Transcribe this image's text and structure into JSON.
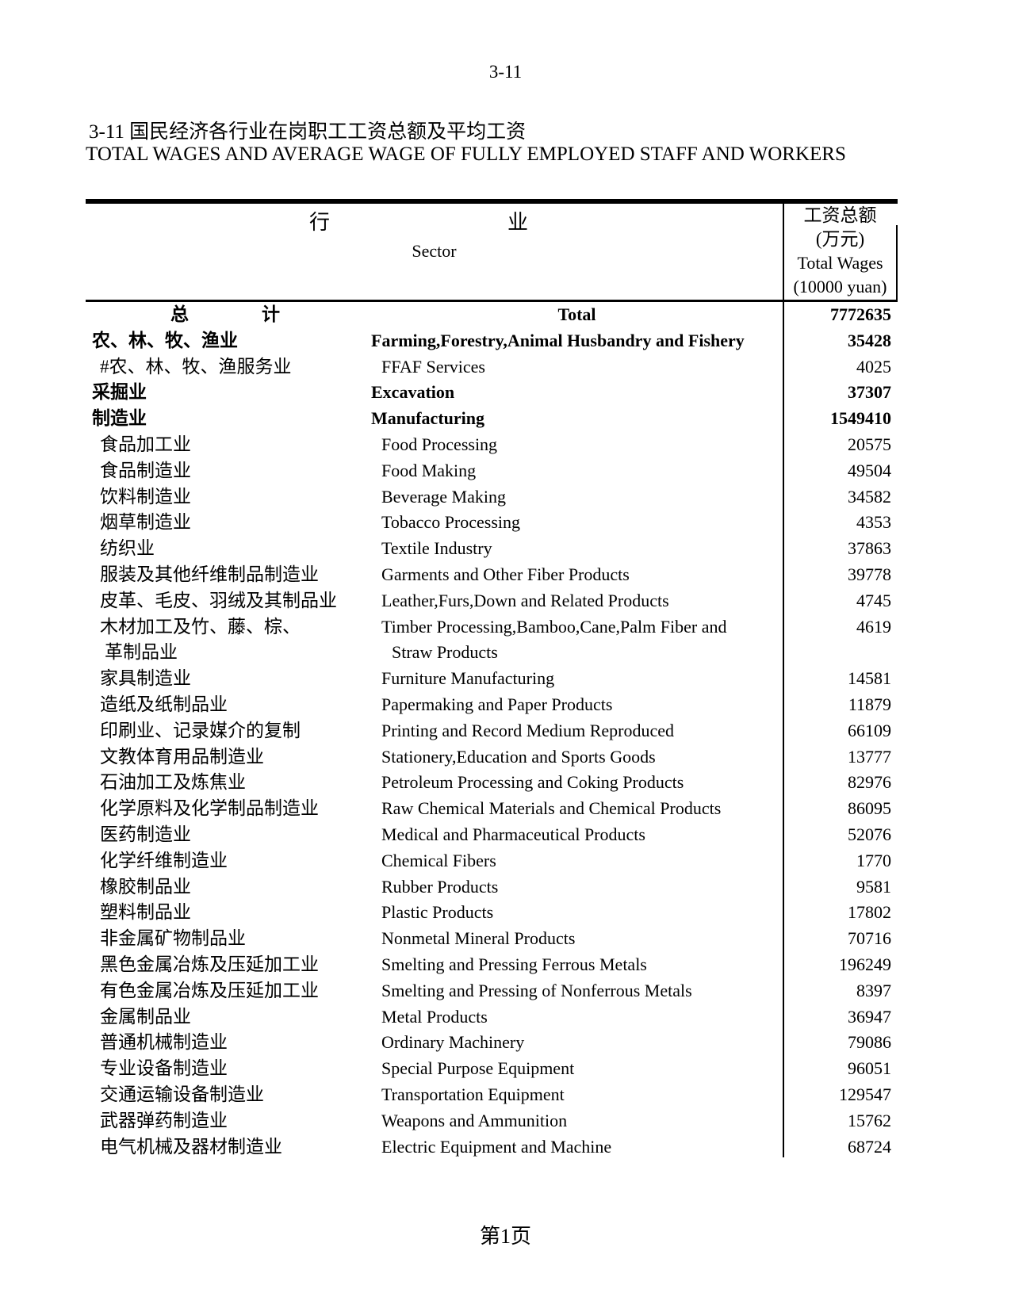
{
  "page": {
    "top_page_number": "3-11",
    "footer_page_label": "第1页"
  },
  "title": {
    "cn": "3-11 国民经济各行业在岗职工工资总额及平均工资",
    "en": "TOTAL WAGES AND AVERAGE WAGE OF FULLY EMPLOYED STAFF AND WORKERS"
  },
  "table": {
    "header": {
      "sector_cn_left": "行",
      "sector_cn_right": "业",
      "sector_en": "Sector",
      "wages_line1_cn": "工资总额",
      "wages_line2_cn": "(万元)",
      "wages_line3_en": "Total Wages",
      "wages_line4_en": "(10000 yuan)"
    },
    "rows": [
      {
        "cn": "总                计",
        "en": "Total",
        "val": "7772635",
        "level": "total"
      },
      {
        "cn": "农、林、牧、渔业",
        "en": "Farming,Forestry,Animal Husbandry and Fishery",
        "val": "35428",
        "level": "major"
      },
      {
        "cn": "#农、林、牧、渔服务业",
        "en": "FFAF Services",
        "val": "4025",
        "level": "sub"
      },
      {
        "cn": "采掘业",
        "en": "Excavation",
        "val": "37307",
        "level": "major"
      },
      {
        "cn": "制造业",
        "en": "Manufacturing",
        "val": "1549410",
        "level": "major"
      },
      {
        "cn": "食品加工业",
        "en": "Food Processing",
        "val": "20575",
        "level": "sub"
      },
      {
        "cn": "食品制造业",
        "en": "Food Making",
        "val": "49504",
        "level": "sub"
      },
      {
        "cn": "饮料制造业",
        "en": "Beverage Making",
        "val": "34582",
        "level": "sub"
      },
      {
        "cn": "烟草制造业",
        "en": "Tobacco Processing",
        "val": "4353",
        "level": "sub"
      },
      {
        "cn": "纺织业",
        "en": "Textile Industry",
        "val": "37863",
        "level": "sub"
      },
      {
        "cn": "服装及其他纤维制品制造业",
        "en": "Garments and Other Fiber Products",
        "val": "39778",
        "level": "sub"
      },
      {
        "cn": "皮革、毛皮、羽绒及其制品业",
        "en": "Leather,Furs,Down and Related Products",
        "val": "4745",
        "level": "sub"
      },
      {
        "cn": "木材加工及竹、藤、棕、",
        "en": "Timber Processing,Bamboo,Cane,Palm Fiber and",
        "val": "4619",
        "level": "sub"
      },
      {
        "cn": "革制品业",
        "en": "Straw Products",
        "val": "",
        "level": "cont"
      },
      {
        "cn": "家具制造业",
        "en": "Furniture Manufacturing",
        "val": "14581",
        "level": "sub"
      },
      {
        "cn": "造纸及纸制品业",
        "en": "Papermaking and Paper Products",
        "val": "11879",
        "level": "sub"
      },
      {
        "cn": "印刷业、记录媒介的复制",
        "en": "Printing and Record Medium Reproduced",
        "val": "66109",
        "level": "sub"
      },
      {
        "cn": "文教体育用品制造业",
        "en": "Stationery,Education and Sports Goods",
        "val": "13777",
        "level": "sub"
      },
      {
        "cn": "石油加工及炼焦业",
        "en": "Petroleum Processing and Coking Products",
        "val": "82976",
        "level": "sub"
      },
      {
        "cn": "化学原料及化学制品制造业",
        "en": "Raw Chemical Materials and Chemical Products",
        "val": "86095",
        "level": "sub"
      },
      {
        "cn": "医药制造业",
        "en": "Medical and Pharmaceutical Products",
        "val": "52076",
        "level": "sub"
      },
      {
        "cn": "化学纤维制造业",
        "en": "Chemical Fibers",
        "val": "1770",
        "level": "sub"
      },
      {
        "cn": "橡胶制品业",
        "en": "Rubber Products",
        "val": "9581",
        "level": "sub"
      },
      {
        "cn": "塑料制品业",
        "en": "Plastic Products",
        "val": "17802",
        "level": "sub"
      },
      {
        "cn": "非金属矿物制品业",
        "en": "Nonmetal Mineral Products",
        "val": "70716",
        "level": "sub"
      },
      {
        "cn": "黑色金属冶炼及压延加工业",
        "en": "Smelting and Pressing Ferrous Metals",
        "val": "196249",
        "level": "sub"
      },
      {
        "cn": "有色金属冶炼及压延加工业",
        "en": "Smelting and Pressing of Nonferrous Metals",
        "val": "8397",
        "level": "sub"
      },
      {
        "cn": "金属制品业",
        "en": "Metal Products",
        "val": "36947",
        "level": "sub"
      },
      {
        "cn": "普通机械制造业",
        "en": "Ordinary Machinery",
        "val": "79086",
        "level": "sub"
      },
      {
        "cn": "专业设备制造业",
        "en": "Special Purpose Equipment",
        "val": "96051",
        "level": "sub"
      },
      {
        "cn": "交通运输设备制造业",
        "en": "Transportation Equipment",
        "val": "129547",
        "level": "sub"
      },
      {
        "cn": "武器弹药制造业",
        "en": "Weapons and Ammunition",
        "val": "15762",
        "level": "sub"
      },
      {
        "cn": "电气机械及器材制造业",
        "en": "Electric Equipment and Machine",
        "val": "68724",
        "level": "sub"
      }
    ]
  }
}
